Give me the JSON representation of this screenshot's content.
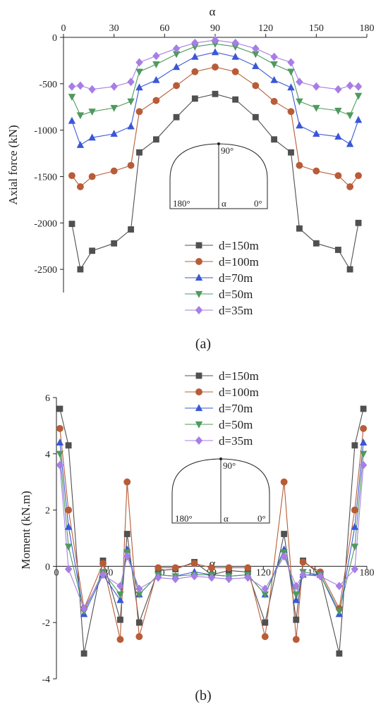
{
  "chart_data": [
    {
      "type": "line",
      "title": "",
      "panel_label": "(a)",
      "xlabel": "α",
      "ylabel": "Axial force (kN)",
      "xlim": [
        0,
        180
      ],
      "ylim": [
        -2750,
        0
      ],
      "x_ticks": [
        0,
        30,
        60,
        90,
        120,
        150,
        180
      ],
      "y_ticks": [
        0,
        -500,
        -1000,
        -1500,
        -2000,
        -2500
      ],
      "x_axis_position": "top",
      "grid": false,
      "legend_position": "bottom-center",
      "x": [
        5,
        10,
        17,
        30,
        40,
        45,
        55,
        67,
        78,
        90,
        102,
        114,
        125,
        135,
        140,
        150,
        163,
        170,
        175
      ],
      "series": [
        {
          "name": "d=150m",
          "color": "#505050",
          "marker": "square",
          "values": [
            -2010,
            -2500,
            -2300,
            -2220,
            -2070,
            -1240,
            -1100,
            -860,
            -660,
            -610,
            -670,
            -860,
            -1100,
            -1240,
            -2060,
            -2220,
            -2290,
            -2500,
            -2000
          ]
        },
        {
          "name": "d=100m",
          "color": "#b85c38",
          "marker": "circle",
          "values": [
            -1490,
            -1610,
            -1500,
            -1440,
            -1380,
            -800,
            -680,
            -520,
            -370,
            -320,
            -370,
            -520,
            -690,
            -800,
            -1380,
            -1440,
            -1490,
            -1610,
            -1490
          ]
        },
        {
          "name": "d=70m",
          "color": "#3a57d6",
          "marker": "triangle-up",
          "values": [
            -900,
            -1160,
            -1080,
            -1040,
            -960,
            -540,
            -460,
            -320,
            -210,
            -160,
            -210,
            -310,
            -460,
            -540,
            -950,
            -1040,
            -1070,
            -1150,
            -890
          ]
        },
        {
          "name": "d=50m",
          "color": "#4f9a5e",
          "marker": "triangle-down",
          "values": [
            -640,
            -840,
            -800,
            -760,
            -690,
            -370,
            -290,
            -180,
            -100,
            -70,
            -100,
            -180,
            -290,
            -370,
            -690,
            -760,
            -790,
            -840,
            -630
          ]
        },
        {
          "name": "d=35m",
          "color": "#a77ee6",
          "marker": "diamond",
          "values": [
            -530,
            -520,
            -560,
            -530,
            -480,
            -270,
            -200,
            -120,
            -60,
            -30,
            -60,
            -120,
            -210,
            -270,
            -480,
            -530,
            -560,
            -520,
            -530
          ]
        }
      ],
      "inset": {
        "top_label": "90°",
        "left_label": "180°",
        "center_label": "α",
        "right_label": "0°"
      }
    },
    {
      "type": "line",
      "title": "",
      "panel_label": "(b)",
      "xlabel": "α",
      "ylabel": "Moment (kN.m)",
      "xlim": [
        0,
        180
      ],
      "ylim": [
        -4,
        6
      ],
      "x_ticks": [
        0,
        30,
        60,
        90,
        120,
        150,
        180
      ],
      "y_ticks": [
        -4,
        -2,
        0,
        2,
        4,
        6
      ],
      "x_axis_position": "at y=0",
      "grid": false,
      "legend_position": "top-center",
      "x": [
        2,
        7,
        16,
        27,
        37,
        41,
        48,
        59,
        69,
        80,
        90,
        100,
        111,
        121,
        132,
        139,
        143,
        153,
        164,
        173,
        178
      ],
      "series": [
        {
          "name": "d=150m",
          "color": "#505050",
          "marker": "square",
          "values": [
            5.6,
            4.3,
            -3.1,
            0.2,
            -1.9,
            1.15,
            -2.0,
            -0.15,
            -0.1,
            0.15,
            -0.3,
            -0.15,
            -0.2,
            -2.0,
            1.15,
            -1.9,
            0.2,
            -0.3,
            -3.1,
            4.3,
            5.6
          ]
        },
        {
          "name": "d=100m",
          "color": "#b85c38",
          "marker": "circle",
          "values": [
            4.9,
            2.0,
            -1.5,
            0.1,
            -2.6,
            3.0,
            -2.5,
            -0.05,
            -0.05,
            0.1,
            -0.05,
            -0.05,
            -0.05,
            -2.5,
            3.0,
            -2.6,
            0.15,
            -0.2,
            -1.5,
            2.0,
            4.9
          ]
        },
        {
          "name": "d=70m",
          "color": "#3a57d6",
          "marker": "triangle-up",
          "values": [
            4.4,
            1.4,
            -1.7,
            -0.3,
            -1.2,
            0.6,
            -1.0,
            -0.3,
            -0.35,
            -0.2,
            -0.3,
            -0.35,
            -0.3,
            -1.0,
            0.6,
            -1.2,
            -0.3,
            -0.3,
            -1.7,
            1.4,
            4.4
          ]
        },
        {
          "name": "d=50m",
          "color": "#4f9a5e",
          "marker": "triangle-down",
          "values": [
            4.0,
            0.7,
            -1.6,
            -0.2,
            -1.0,
            0.5,
            -1.0,
            -0.3,
            -0.35,
            -0.3,
            -0.3,
            -0.35,
            -0.3,
            -1.0,
            0.5,
            -1.0,
            -0.2,
            -0.3,
            -1.6,
            0.7,
            4.0
          ]
        },
        {
          "name": "d=35m",
          "color": "#a77ee6",
          "marker": "diamond",
          "values": [
            3.6,
            -0.1,
            -1.5,
            -0.3,
            -0.7,
            0.35,
            -0.8,
            -0.4,
            -0.45,
            -0.35,
            -0.4,
            -0.45,
            -0.4,
            -0.8,
            0.35,
            -0.7,
            -0.3,
            -0.35,
            -0.7,
            -0.1,
            3.6
          ]
        }
      ],
      "inset": {
        "top_label": "90°",
        "left_label": "180°",
        "center_label": "α",
        "right_label": "0°"
      }
    }
  ]
}
